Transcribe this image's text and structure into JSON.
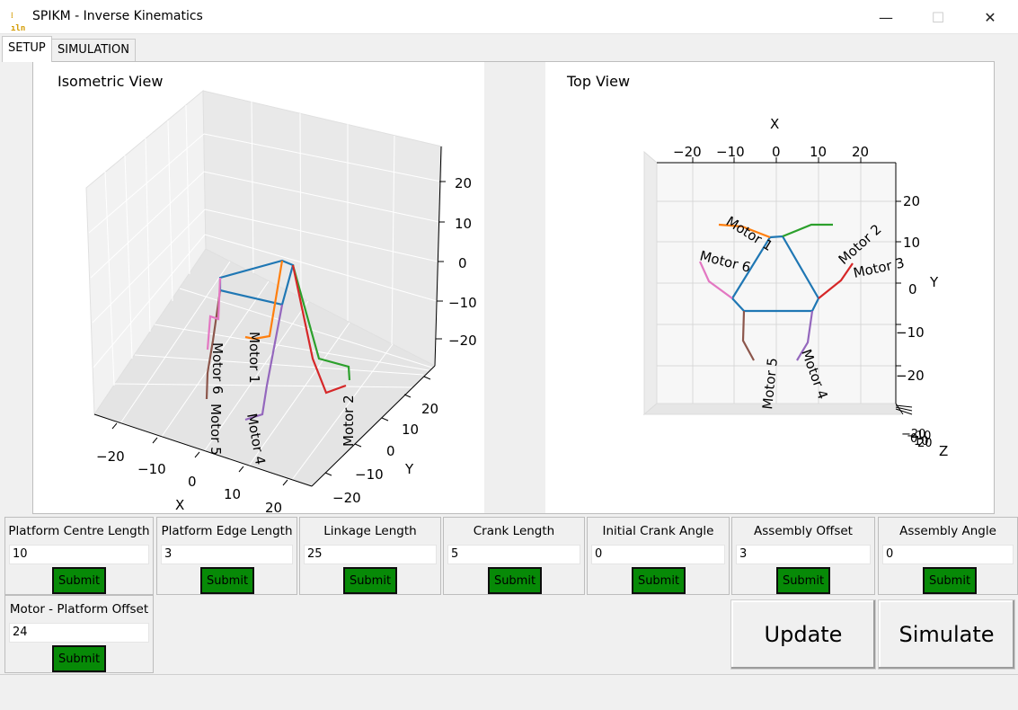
{
  "window": {
    "title": "SPIKM - Inverse Kinematics",
    "icon_glyph": "⁝ıln",
    "minimize_glyph": "—",
    "maximize_glyph": "☐",
    "close_glyph": "✕"
  },
  "tabs": [
    {
      "label": "SETUP",
      "active": true
    },
    {
      "label": "SIMULATION",
      "active": false
    }
  ],
  "plots": {
    "isometric": {
      "title": "Isometric View",
      "x_label": "X",
      "y_label": "Y",
      "x_ticks": [
        "−20",
        "−10",
        "0",
        "10",
        "20"
      ],
      "y_ticks": [
        "−20",
        "−10",
        "0",
        "10",
        "20"
      ],
      "z_ticks": [
        "20",
        "10",
        "0",
        "−10",
        "−20"
      ],
      "motor_labels": [
        "Motor 1",
        "Motor 2",
        "Motor 6",
        "Motor 5",
        "Motor 4"
      ]
    },
    "top": {
      "title": "Top View",
      "x_label": "X",
      "y_label": "Y",
      "z_label": "Z",
      "x_ticks": [
        "−20",
        "−10",
        "0",
        "10",
        "20"
      ],
      "y_ticks": [
        "20",
        "10",
        "0",
        "−10",
        "−20"
      ],
      "z_ticks": [
        "−20",
        "−10",
        "0",
        "10",
        "20"
      ],
      "motor_labels": [
        "Motor 1",
        "Motor 2",
        "Motor 3",
        "Motor 6",
        "Motor 5",
        "Motor 4"
      ]
    },
    "colors": {
      "platform": "#1f77b4",
      "motor1": "#ff7f0e",
      "motor2": "#2ca02c",
      "motor3": "#d62728",
      "motor4": "#9467bd",
      "motor5": "#8c564b",
      "motor6": "#e377c2"
    }
  },
  "params": [
    {
      "label": "Platform Centre Length",
      "value": "10",
      "submit": "Submit"
    },
    {
      "label": "Platform Edge Length",
      "value": "3",
      "submit": "Submit"
    },
    {
      "label": "Linkage Length",
      "value": "25",
      "submit": "Submit"
    },
    {
      "label": "Crank Length",
      "value": "5",
      "submit": "Submit"
    },
    {
      "label": "Initial Crank Angle",
      "value": "0",
      "submit": "Submit"
    },
    {
      "label": "Assembly Offset",
      "value": "3",
      "submit": "Submit"
    },
    {
      "label": "Assembly Angle",
      "value": "0",
      "submit": "Submit"
    },
    {
      "label": "Motor - Platform Offset",
      "value": "24",
      "submit": "Submit"
    }
  ],
  "actions": {
    "update": "Update",
    "simulate": "Simulate"
  }
}
